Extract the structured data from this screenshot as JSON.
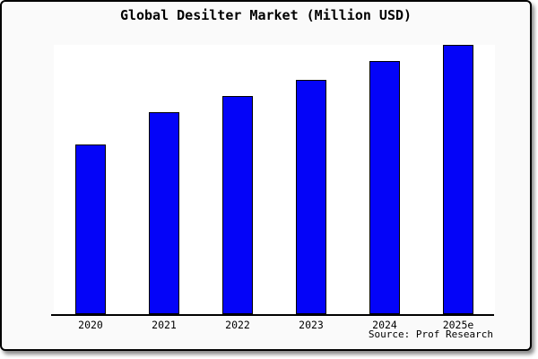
{
  "chart_data": {
    "type": "bar",
    "title": "Global Desilter Market (Million USD)",
    "categories": [
      "2020",
      "2021",
      "2022",
      "2023",
      "2024",
      "2025e"
    ],
    "values": [
      63,
      75,
      81,
      87,
      94,
      100
    ],
    "values_note": "no y-axis or data labels shown in chart; values estimated as relative bar heights with 2025e = 100",
    "ylim": [
      0,
      100
    ],
    "xlabel": "",
    "ylabel": "",
    "grid": false,
    "legend": false,
    "bar_fill_color": "#0404f8",
    "bar_border_color": "#000000",
    "source": "Source: Prof Research"
  },
  "colors": {
    "card_background": "#fafafa",
    "plot_background": "#ffffff",
    "card_border": "#000000",
    "text": "#000000"
  }
}
